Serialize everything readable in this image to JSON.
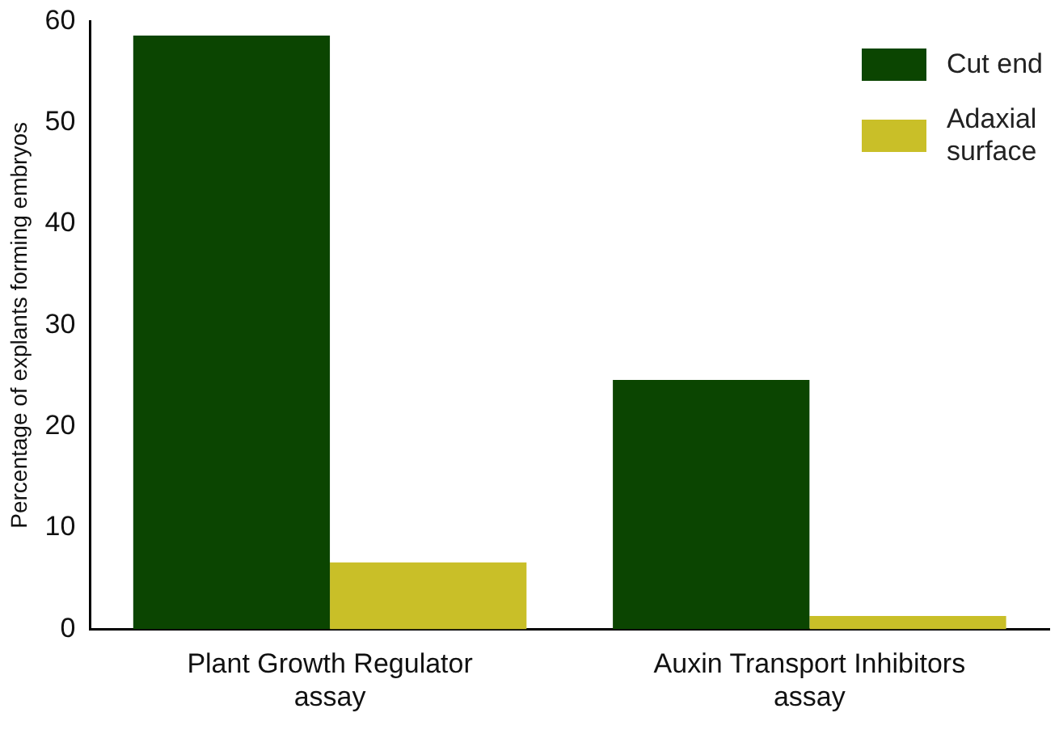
{
  "chart_data": {
    "type": "bar",
    "ylabel": "Percentage of explants forming embryos",
    "categories": [
      "Plant Growth Regulator\nassay",
      "Auxin Transport Inhibitors\nassay"
    ],
    "series": [
      {
        "name": "Cut end",
        "color": "#0b4501",
        "values": [
          58.6,
          24.6
        ]
      },
      {
        "name": "Adaxial\nsurface",
        "color": "#c9bf28",
        "values": [
          6.6,
          1.3
        ]
      }
    ],
    "ylim": [
      0,
      60
    ],
    "yticks": [
      0,
      10,
      20,
      30,
      40,
      50,
      60
    ],
    "grid": false,
    "legend": "top right"
  }
}
